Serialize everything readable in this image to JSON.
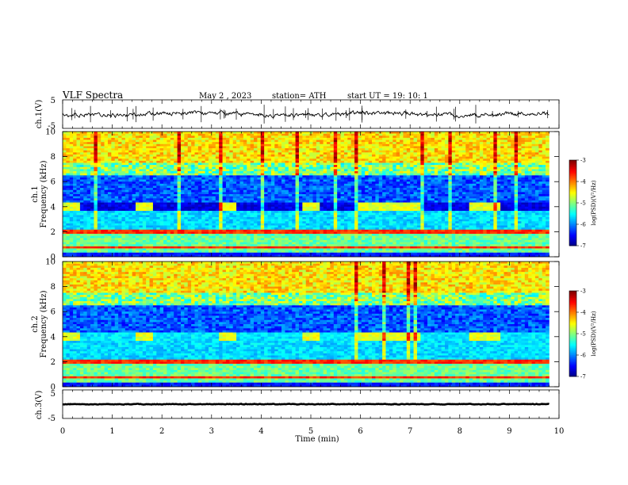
{
  "header": {
    "title": "VLF  Spectra",
    "date": "May 2  , 2023",
    "station": "station= ATH",
    "start": "start  UT  =    19: 10: 1"
  },
  "chart_data": [
    {
      "type": "line",
      "name": "ch1-waveform",
      "ylabel": "ch.1(V)",
      "ylim": [
        -5,
        5
      ],
      "yticks": [
        "5",
        "-5"
      ],
      "xlim": [
        0,
        10
      ],
      "note_level_V": 0
    },
    {
      "type": "heatmap",
      "name": "ch1-spectrogram",
      "ylabel": "ch.1\nFrequency (kHz)",
      "ylim": [
        0,
        10
      ],
      "yticks": [
        "0",
        "2",
        "4",
        "6",
        "8",
        "10"
      ],
      "xlim": [
        0,
        9.8
      ],
      "colorbar": {
        "label": "log(PSD)(V²/Hz)",
        "range": [
          -7,
          -3
        ],
        "ticks": [
          "-3",
          "-4",
          "-5",
          "-6",
          "-7"
        ]
      },
      "transmitter_blocks_min": [
        [
          0,
          0.35
        ],
        [
          1.5,
          1.85
        ],
        [
          3.15,
          3.5
        ],
        [
          4.85,
          5.2
        ],
        [
          5.95,
          7.2
        ],
        [
          8.2,
          8.85
        ]
      ]
    },
    {
      "type": "heatmap",
      "name": "ch2-spectrogram",
      "ylabel": "ch.2\nFrequency (kHz)",
      "ylim": [
        0,
        10
      ],
      "yticks": [
        "0",
        "2",
        "4",
        "6",
        "8",
        "10"
      ],
      "xlim": [
        0,
        9.8
      ],
      "colorbar": {
        "label": "log(PSD)(V²/Hz)",
        "range": [
          -7,
          -3
        ],
        "ticks": [
          "-3",
          "-4",
          "-5",
          "-6",
          "-7"
        ]
      }
    },
    {
      "type": "line",
      "name": "ch3-waveform",
      "ylabel": "ch.3(V)",
      "ylim": [
        -5,
        5
      ],
      "yticks": [
        "5",
        "-5"
      ],
      "xlim": [
        0,
        10
      ],
      "xlabel": "Time  (min)",
      "xticks": [
        "0",
        "1",
        "2",
        "3",
        "4",
        "5",
        "6",
        "7",
        "8",
        "9",
        "10"
      ]
    }
  ]
}
